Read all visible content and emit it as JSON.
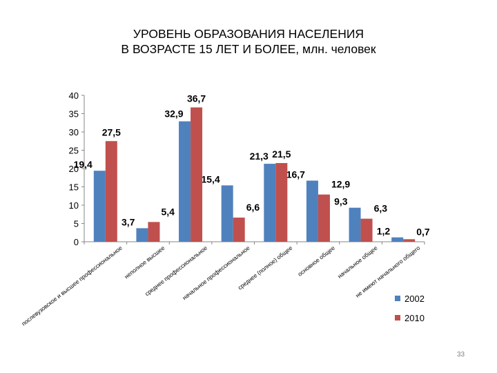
{
  "title_line1": "УРОВЕНЬ ОБРАЗОВАНИЯ НАСЕЛЕНИЯ",
  "title_line2": "В ВОЗРАСТЕ 15 ЛЕТ И БОЛЕЕ, млн. человек",
  "page_number": "33",
  "chart_data": {
    "type": "bar",
    "categories": [
      "послевузовское и высшее профессиональное",
      "неполное высшее",
      "среднее профессиональное",
      "начальное профессиональное",
      "среднее (полное) общее",
      "основное общее",
      "начальное общее",
      "не имеют начального общего"
    ],
    "series": [
      {
        "name": "2002",
        "color": "#4f81bd",
        "values": [
          19.4,
          3.7,
          32.9,
          15.4,
          21.3,
          16.7,
          9.3,
          1.2
        ],
        "labels": [
          "19,4",
          "3,7",
          "32,9",
          "15,4",
          "21,3",
          "16,7",
          "9,3",
          "1,2"
        ]
      },
      {
        "name": "2010",
        "color": "#c0504d",
        "values": [
          27.5,
          5.4,
          36.7,
          6.6,
          21.5,
          12.9,
          6.3,
          0.7
        ],
        "labels": [
          "27,5",
          "5,4",
          "36,7",
          "6,6",
          "21,5",
          "12,9",
          "6,3",
          "0,7"
        ]
      }
    ],
    "ylim": [
      0,
      40
    ],
    "yticks": [
      0,
      5,
      10,
      15,
      20,
      25,
      30,
      35,
      40
    ],
    "grid": false,
    "legend_position": "bottom-right"
  }
}
